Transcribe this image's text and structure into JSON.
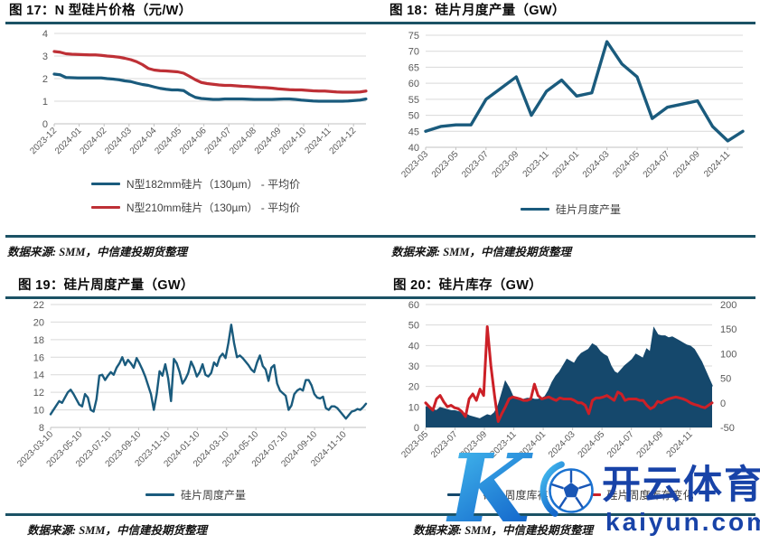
{
  "panels": [
    {
      "title": "图 17：N 型硅片价格（元/W）",
      "source": "数据来源: SMM，中信建投期货整理"
    },
    {
      "title": "图 18：硅片月度产量（GW）",
      "source": "数据来源: SMM，中信建投期货整理"
    },
    {
      "title": "图 19：硅片周度产量（GW）",
      "source": "数据来源: SMM，中信建投期货整理"
    },
    {
      "title": "图 20：硅片库存（GW）",
      "source": "数据来源: SMM，中信建投期货整理"
    }
  ],
  "watermark": {
    "letter": "K",
    "brand": "开云体育",
    "domain": "kaiyun.com",
    "color": "#1843A8"
  },
  "colors": {
    "rule": "#1B5265",
    "grid": "#D9D9D9",
    "axis": "#C2C2C2",
    "tick": "#595959"
  },
  "chart_data": [
    {
      "type": "line",
      "title": "N 型硅片价格（元/W）",
      "ylabel": "元/W",
      "ylim": [
        0,
        4
      ],
      "yticks": [
        0,
        1,
        2,
        3,
        4
      ],
      "x_labels": [
        "2023-12",
        "2024-01",
        "2024-02",
        "2024-03",
        "2024-04",
        "2024-05",
        "2024-06",
        "2024-07",
        "2024-08",
        "2024-09",
        "2024-10",
        "2024-11",
        "2024-12"
      ],
      "x_tick_step_fraction": 0.08,
      "legend_position": "bottom",
      "series": [
        {
          "name": "N型182mm硅片（130µm） - 平均价",
          "color": "#1A5B7D",
          "values": [
            2.2,
            2.17,
            2.05,
            2.04,
            2.03,
            2.03,
            2.03,
            2.03,
            2.03,
            2.0,
            1.98,
            1.95,
            1.9,
            1.87,
            1.8,
            1.74,
            1.7,
            1.63,
            1.57,
            1.53,
            1.5,
            1.5,
            1.47,
            1.3,
            1.17,
            1.12,
            1.1,
            1.08,
            1.08,
            1.1,
            1.1,
            1.1,
            1.1,
            1.09,
            1.08,
            1.08,
            1.08,
            1.08,
            1.09,
            1.1,
            1.1,
            1.08,
            1.05,
            1.03,
            1.01,
            1.0,
            1.0,
            1.0,
            1.0,
            1.0,
            1.01,
            1.03,
            1.05,
            1.1
          ]
        },
        {
          "name": "N型210mm硅片（130µm） - 平均价",
          "color": "#BE3036",
          "values": [
            3.2,
            3.17,
            3.1,
            3.08,
            3.07,
            3.06,
            3.05,
            3.05,
            3.03,
            3.0,
            2.98,
            2.95,
            2.9,
            2.84,
            2.75,
            2.62,
            2.45,
            2.38,
            2.35,
            2.34,
            2.32,
            2.3,
            2.24,
            2.1,
            1.95,
            1.83,
            1.78,
            1.75,
            1.72,
            1.7,
            1.7,
            1.68,
            1.66,
            1.65,
            1.63,
            1.61,
            1.6,
            1.58,
            1.55,
            1.53,
            1.51,
            1.5,
            1.5,
            1.48,
            1.46,
            1.45,
            1.45,
            1.43,
            1.41,
            1.4,
            1.4,
            1.4,
            1.41,
            1.45
          ]
        }
      ]
    },
    {
      "type": "line",
      "title": "硅片月度产量（GW）",
      "ylabel": "GW",
      "ylim": [
        40,
        75
      ],
      "yticks": [
        40,
        45,
        50,
        55,
        60,
        65,
        70,
        75
      ],
      "x_labels": [
        "2023-03",
        "2023-05",
        "2023-07",
        "2023-09",
        "2023-11",
        "2024-01",
        "2024-03",
        "2024-05",
        "2024-07",
        "2024-09",
        "2024-11"
      ],
      "x_tick_step_fraction": 0.0952,
      "legend_position": "bottom",
      "series": [
        {
          "name": "硅片月度产量",
          "color": "#1A5B7D",
          "values": [
            45,
            46.5,
            47,
            47,
            55,
            58.5,
            62,
            50,
            57.5,
            61,
            56,
            57,
            73,
            66,
            62,
            49,
            52.5,
            53.5,
            54.5,
            46.5,
            42,
            45
          ]
        }
      ]
    },
    {
      "type": "line",
      "title": "硅片周度产量（GW）",
      "ylabel": "GW",
      "ylim": [
        8,
        22
      ],
      "yticks": [
        8,
        10,
        12,
        14,
        16,
        18,
        20,
        22
      ],
      "x_labels": [
        "2023-03-10",
        "2023-05-10",
        "2023-07-10",
        "2023-09-10",
        "2023-11-10",
        "2024-01-10",
        "2024-03-10",
        "2024-05-10",
        "2024-07-10",
        "2024-09-10",
        "2024-11-10"
      ],
      "x_tick_step_fraction": 0.093,
      "legend_position": "bottom",
      "series": [
        {
          "name": "硅片周度产量",
          "color": "#1A5B7D",
          "values": [
            9.5,
            10.0,
            10.5,
            11.0,
            10.8,
            11.4,
            12.0,
            12.3,
            11.8,
            11.2,
            10.6,
            10.4,
            11.8,
            11.4,
            10.0,
            9.8,
            11.2,
            13.9,
            14.0,
            13.4,
            13.9,
            14.3,
            14.0,
            14.8,
            15.3,
            16.0,
            15.1,
            15.7,
            15.3,
            14.8,
            15.9,
            15.3,
            14.6,
            13.8,
            12.8,
            11.8,
            10.0,
            11.8,
            14.4,
            13.9,
            15.2,
            13.6,
            11.0,
            15.8,
            15.3,
            14.3,
            13.0,
            13.5,
            14.2,
            15.5,
            14.8,
            13.8,
            14.3,
            15.2,
            14.0,
            13.8,
            14.2,
            15.4,
            15.0,
            16.0,
            16.4,
            15.9,
            17.6,
            19.7,
            17.6,
            16.0,
            16.2,
            15.9,
            15.5,
            15.1,
            14.6,
            14.3,
            15.4,
            16.2,
            15.0,
            14.6,
            13.3,
            14.8,
            15.1,
            13.0,
            12.2,
            11.9,
            11.6,
            10.0,
            10.5,
            11.8,
            12.2,
            12.4,
            12.2,
            13.4,
            13.4,
            12.8,
            11.8,
            11.4,
            11.3,
            11.5,
            10.2,
            10.0,
            10.4,
            10.4,
            10.2,
            9.8,
            9.4,
            9.0,
            9.4,
            9.8,
            9.9,
            10.1,
            10.0,
            10.3,
            10.7
          ]
        }
      ]
    },
    {
      "type": "area",
      "title": "硅片库存（GW）",
      "ylabel": "GW",
      "ylim": [
        0,
        60
      ],
      "yticks": [
        0,
        10,
        20,
        30,
        40,
        50,
        60
      ],
      "ylim_right": [
        -50,
        200
      ],
      "yticks_right": [
        -50,
        0,
        50,
        100,
        150,
        200
      ],
      "x_labels": [
        "2023-05",
        "2023-07",
        "2023-09",
        "2023-11",
        "2024-01",
        "2024-03",
        "2024-05",
        "2024-07",
        "2024-09",
        "2024-11"
      ],
      "x_tick_step_fraction": 0.1026,
      "legend_position": "bottom",
      "series": [
        {
          "name": "硅片周度库存",
          "color": "#15486C",
          "axis": "left",
          "area": true,
          "values": [
            10,
            9.5,
            8.5,
            8,
            9.5,
            9,
            8.5,
            8,
            8,
            7.5,
            7,
            6.5,
            5.5,
            5,
            4.5,
            4,
            5,
            6,
            5.5,
            7,
            10,
            16,
            22,
            19,
            15,
            13.5,
            13,
            13.5,
            14,
            14,
            13.5,
            13.5,
            14,
            15,
            18,
            22,
            25,
            27,
            30,
            33,
            32,
            31,
            34,
            36,
            37,
            38,
            40.5,
            39.5,
            37,
            35.5,
            34.5,
            30,
            27,
            26,
            28,
            30,
            31.5,
            33,
            35.5,
            34.5,
            33.5,
            38,
            36.5,
            48,
            45,
            44.5,
            44.5,
            43.5,
            44,
            43,
            42,
            41,
            40,
            39.5,
            38,
            35,
            32,
            28,
            24,
            20
          ]
        },
        {
          "name": "硅片周度库存变化",
          "color": "#CC2027",
          "axis": "right",
          "values": [
            0,
            -8,
            -15,
            8,
            15,
            2,
            -8,
            -5,
            -10,
            -12,
            -18,
            -28,
            8,
            18,
            5,
            28,
            15,
            155,
            75,
            15,
            -38,
            -22,
            -8,
            8,
            12,
            10,
            8,
            5,
            5,
            8,
            38,
            15,
            8,
            10,
            12,
            8,
            5,
            10,
            8,
            8,
            8,
            5,
            0,
            0,
            -5,
            -22,
            5,
            10,
            10,
            12,
            15,
            10,
            5,
            22,
            18,
            5,
            8,
            8,
            8,
            5,
            5,
            -5,
            -12,
            -8,
            3,
            0,
            5,
            8,
            10,
            12,
            10,
            8,
            5,
            0,
            -3,
            -5,
            -8,
            -10,
            -5,
            0
          ]
        }
      ]
    }
  ]
}
